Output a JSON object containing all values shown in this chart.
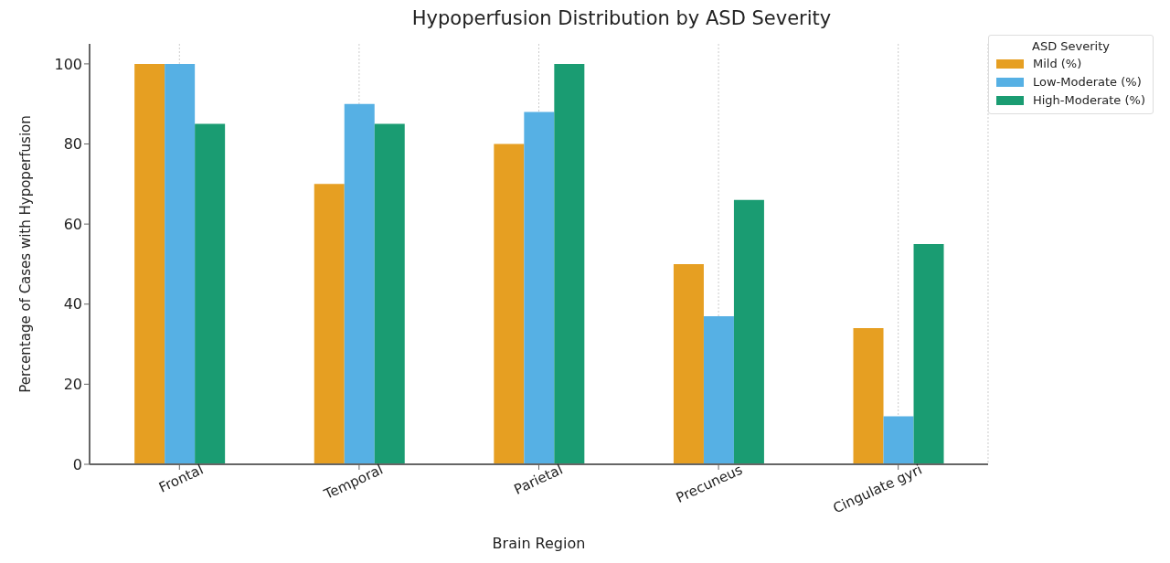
{
  "chart_data": {
    "type": "bar",
    "title": "Hypoperfusion Distribution by ASD Severity",
    "xlabel": "Brain Region",
    "ylabel": "Percentage of Cases with Hypoperfusion",
    "legend_title": "ASD Severity",
    "categories": [
      "Frontal",
      "Temporal",
      "Parietal",
      "Precuneus",
      "Cingulate gyri"
    ],
    "series": [
      {
        "name": "Mild (%)",
        "color": "#e69f22",
        "values": [
          100,
          70,
          80,
          50,
          34
        ]
      },
      {
        "name": "Low-Moderate (%)",
        "color": "#56b0e4",
        "values": [
          100,
          90,
          88,
          37,
          12
        ]
      },
      {
        "name": "High-Moderate (%)",
        "color": "#1a9c72",
        "values": [
          85,
          85,
          100,
          66,
          55
        ]
      }
    ],
    "ylim": [
      0,
      105
    ],
    "yticks": [
      0,
      20,
      40,
      60,
      80,
      100
    ],
    "grid": "x",
    "legend": "top right"
  }
}
